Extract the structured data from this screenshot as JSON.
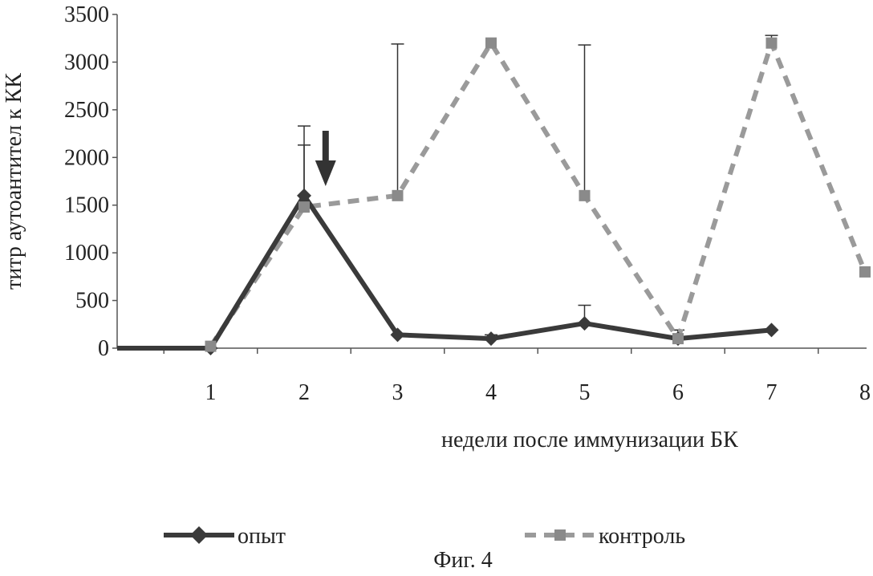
{
  "chart_data": {
    "type": "line",
    "title": "",
    "xlabel": "недели после иммунизации БК",
    "ylabel": "титр аутоантител к КК",
    "x": [
      0,
      1,
      2,
      3,
      4,
      5,
      6,
      7,
      8
    ],
    "x_ticks": [
      1,
      2,
      3,
      4,
      5,
      6,
      7,
      8
    ],
    "y_ticks": [
      0,
      500,
      1000,
      1500,
      2000,
      2500,
      3000,
      3500
    ],
    "xlim": [
      0,
      8.5
    ],
    "ylim": [
      0,
      3500
    ],
    "grid": false,
    "legend_position": "bottom",
    "series": [
      {
        "name": "опыт",
        "style": "solid",
        "marker": "diamond",
        "color": "#3a3a3a",
        "points": [
          {
            "x": 0,
            "y": 0
          },
          {
            "x": 1,
            "y": 0
          },
          {
            "x": 2,
            "y": 1600,
            "err": 730
          },
          {
            "x": 3,
            "y": 140
          },
          {
            "x": 4,
            "y": 100,
            "err": 40
          },
          {
            "x": 5,
            "y": 260,
            "err": 190
          },
          {
            "x": 6,
            "y": 100,
            "err": 90
          },
          {
            "x": 7,
            "y": 190
          }
        ]
      },
      {
        "name": "контроль",
        "style": "dashed",
        "marker": "square",
        "color": "#9a9a9a",
        "points": [
          {
            "x": 1,
            "y": 20
          },
          {
            "x": 2,
            "y": 1480,
            "err": 650
          },
          {
            "x": 3,
            "y": 1600,
            "err": 1590
          },
          {
            "x": 4,
            "y": 3200
          },
          {
            "x": 5,
            "y": 1600,
            "err": 1580
          },
          {
            "x": 6,
            "y": 100,
            "err": 90
          },
          {
            "x": 7,
            "y": 3200,
            "err": 80
          },
          {
            "x": 8,
            "y": 800
          }
        ]
      }
    ],
    "annotations": [
      {
        "type": "arrow-down",
        "x": 2.23,
        "y_top": 2280,
        "y_bottom": 1700
      }
    ]
  },
  "caption": "Фиг. 4"
}
